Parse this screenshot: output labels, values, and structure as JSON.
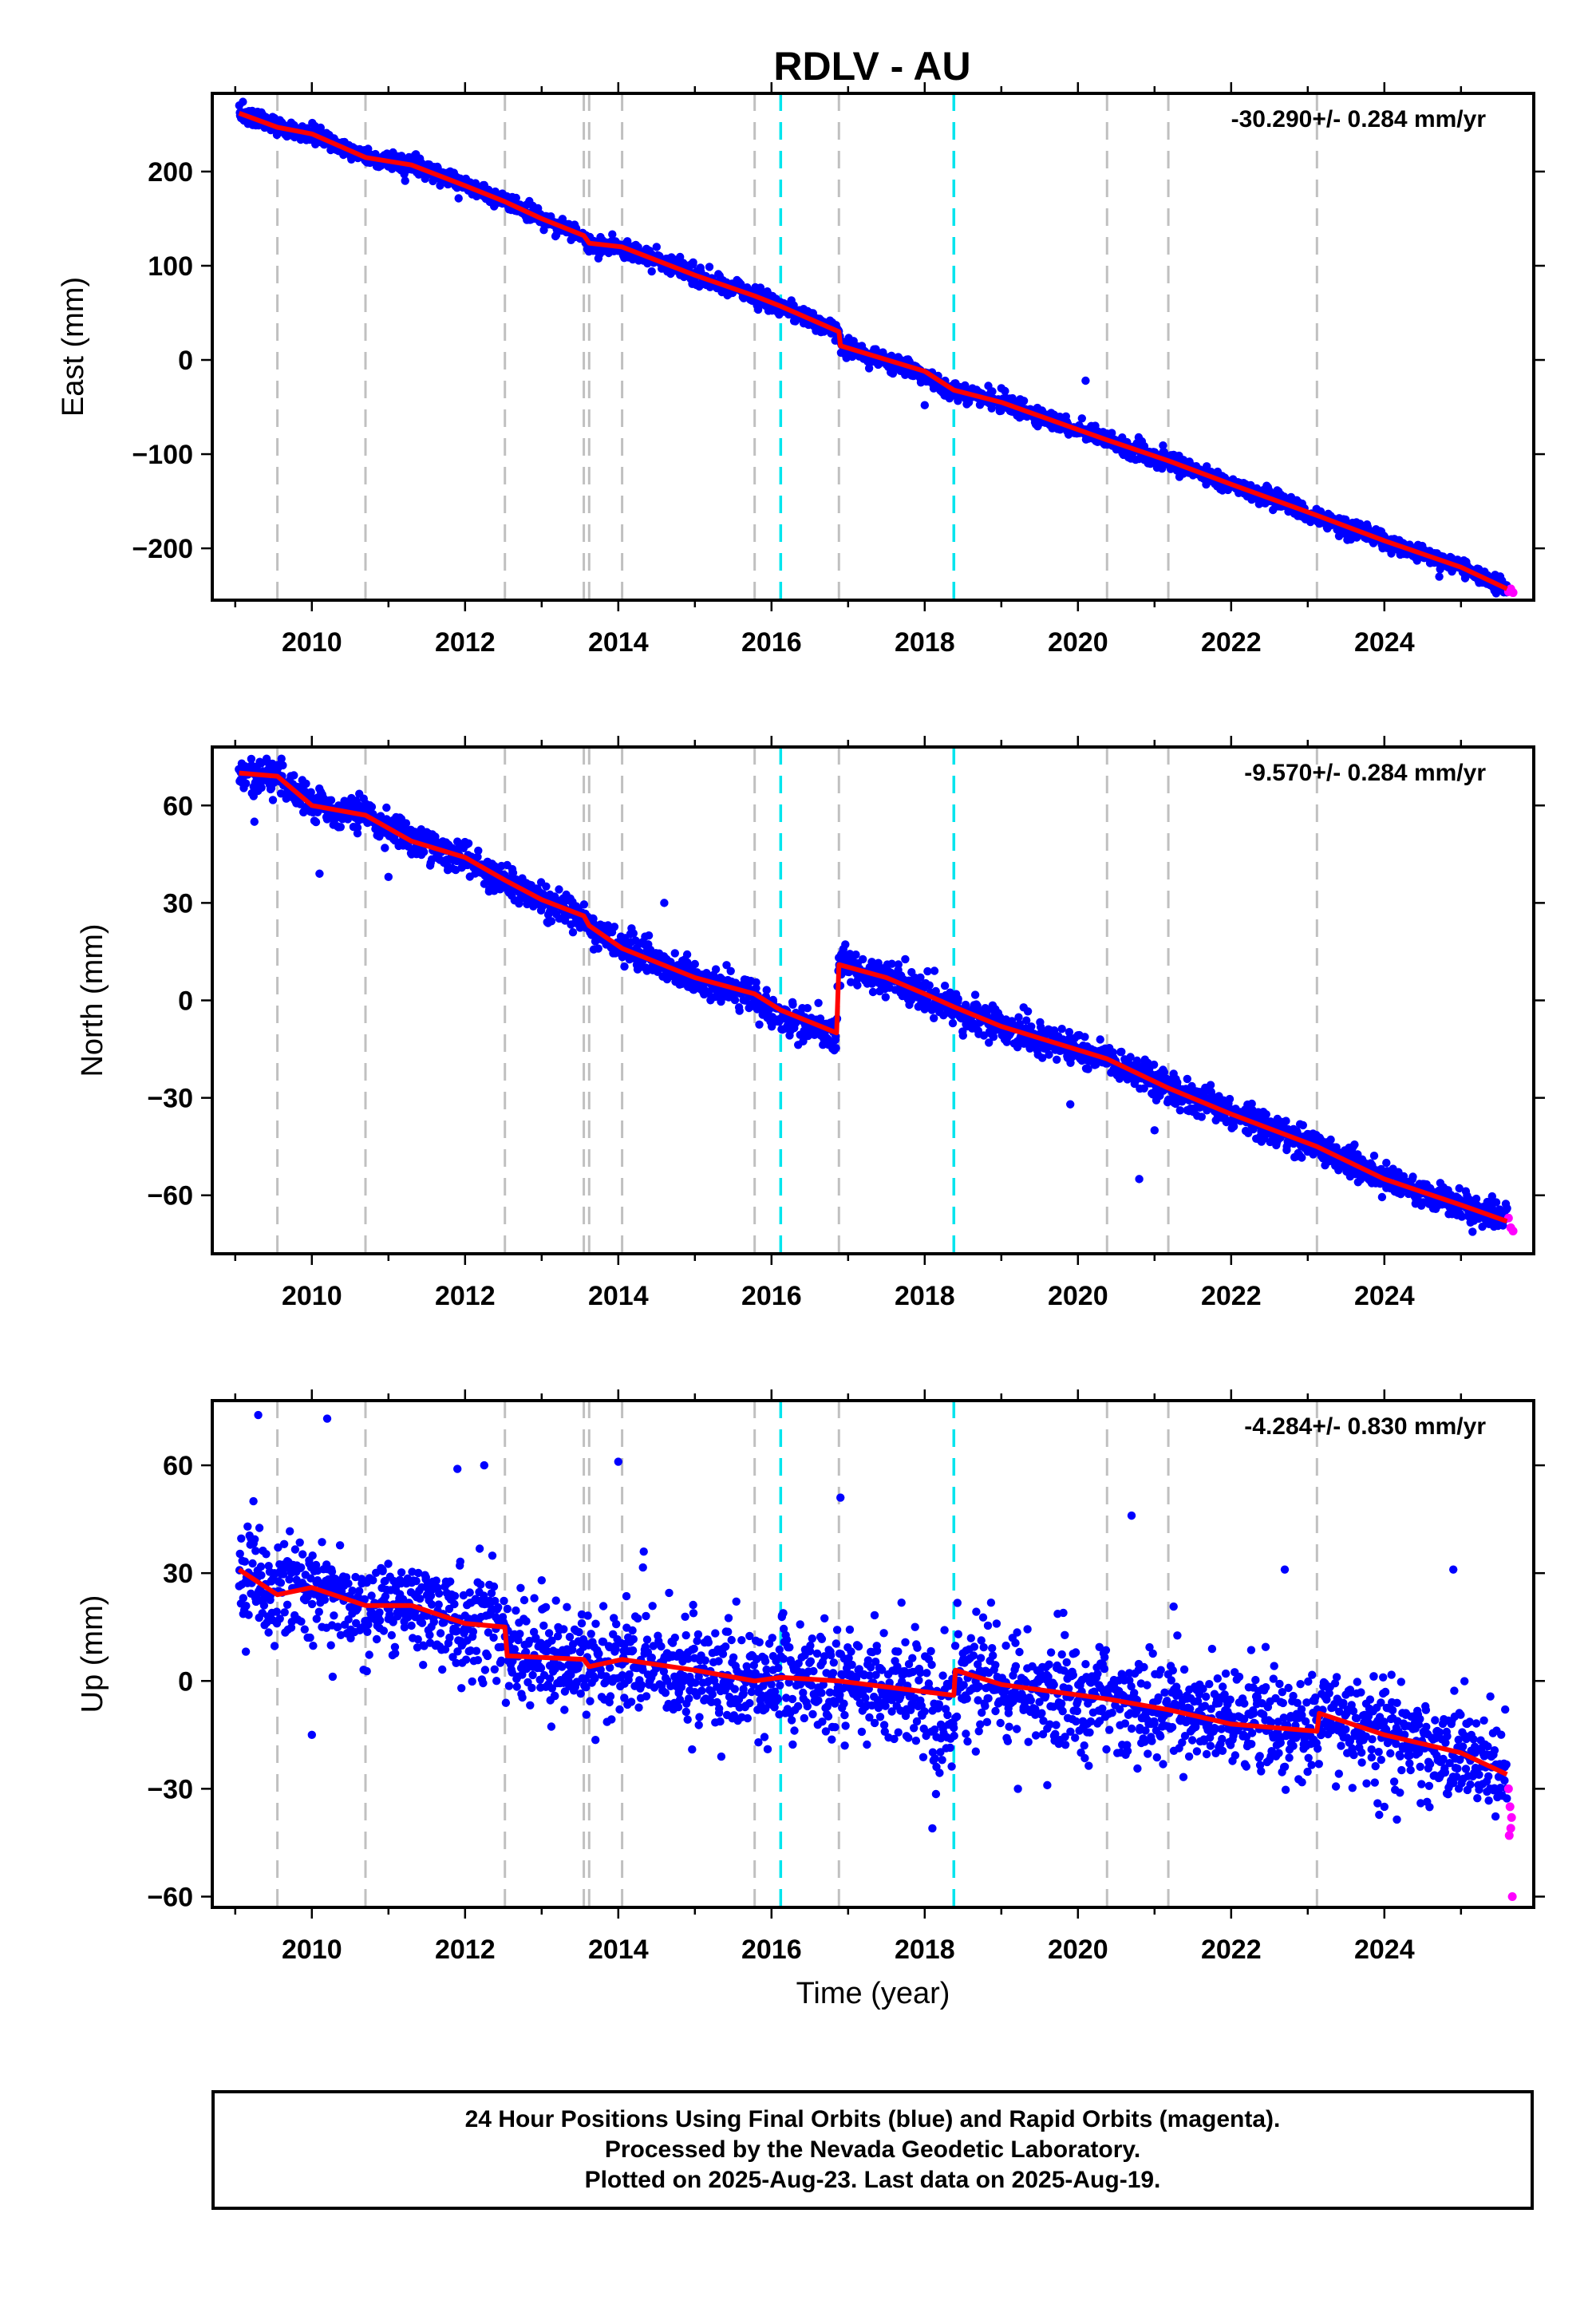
{
  "chart_data": {
    "type": "scatter",
    "title": "RDLV - AU",
    "xlabel": "Time (year)",
    "xlim": [
      2008.7,
      2025.95
    ],
    "x_ticks": [
      2010,
      2012,
      2014,
      2016,
      2018,
      2020,
      2022,
      2024
    ],
    "x_tick_labels": [
      "2010",
      "2012",
      "2014",
      "2016",
      "2018",
      "2020",
      "2022",
      "2024"
    ],
    "equipment_change_lines": [
      2009.55,
      2010.7,
      2012.52,
      2013.55,
      2013.62,
      2014.05,
      2015.78,
      2016.88,
      2020.38,
      2021.18,
      2023.12
    ],
    "earthquake_lines": [
      2016.12,
      2018.38
    ],
    "colors": {
      "final_orbits": "#0000ff",
      "rapid_orbits": "#ff00ff",
      "model": "#ff0000",
      "equipment_line": "#c0c0c0",
      "earthquake_line": "#00e5ee"
    },
    "panels": [
      {
        "name": "east",
        "ylabel": "East (mm)",
        "ylim": [
          -255,
          283
        ],
        "y_ticks": [
          -200,
          -100,
          0,
          100,
          200
        ],
        "y_tick_labels": [
          "−200",
          "−100",
          "0",
          "100",
          "200"
        ],
        "rate_text": "-30.290+/- 0.284 mm/yr",
        "model_knots": [
          [
            2009.05,
            262
          ],
          [
            2009.55,
            247
          ],
          [
            2010.0,
            240
          ],
          [
            2010.7,
            215
          ],
          [
            2011.3,
            207
          ],
          [
            2012.0,
            185
          ],
          [
            2012.52,
            168
          ],
          [
            2013.0,
            150
          ],
          [
            2013.55,
            132
          ],
          [
            2013.62,
            124
          ],
          [
            2014.05,
            120
          ],
          [
            2015.0,
            90
          ],
          [
            2015.78,
            68
          ],
          [
            2016.12,
            57
          ],
          [
            2016.88,
            30
          ],
          [
            2016.9,
            15
          ],
          [
            2018.0,
            -12
          ],
          [
            2018.38,
            -32
          ],
          [
            2019.0,
            -45
          ],
          [
            2020.38,
            -85
          ],
          [
            2021.18,
            -107
          ],
          [
            2022.0,
            -132
          ],
          [
            2023.12,
            -165
          ],
          [
            2024.0,
            -192
          ],
          [
            2025.0,
            -220
          ],
          [
            2025.6,
            -243
          ]
        ],
        "noise": 4.5,
        "outliers": [
          [
            2018.0,
            -48
          ],
          [
            2020.1,
            -22
          ],
          [
            2019.0,
            -30
          ],
          [
            2014.5,
            120
          ],
          [
            2009.1,
            274
          ]
        ],
        "rapid_points": [
          [
            2025.62,
            -246
          ],
          [
            2025.65,
            -243
          ],
          [
            2025.68,
            -247
          ]
        ]
      },
      {
        "name": "north",
        "ylabel": "North (mm)",
        "ylim": [
          -78,
          78
        ],
        "y_ticks": [
          -60,
          -30,
          0,
          30,
          60
        ],
        "y_tick_labels": [
          "−60",
          "−30",
          "0",
          "30",
          "60"
        ],
        "rate_text": "-9.570+/- 0.284 mm/yr",
        "model_knots": [
          [
            2009.05,
            70
          ],
          [
            2009.55,
            69
          ],
          [
            2010.0,
            60
          ],
          [
            2010.7,
            57
          ],
          [
            2011.3,
            49
          ],
          [
            2012.0,
            44
          ],
          [
            2012.52,
            37
          ],
          [
            2013.0,
            31
          ],
          [
            2013.55,
            26
          ],
          [
            2013.62,
            23
          ],
          [
            2014.05,
            16
          ],
          [
            2015.0,
            7
          ],
          [
            2015.78,
            2
          ],
          [
            2016.12,
            -3
          ],
          [
            2016.85,
            -10
          ],
          [
            2016.88,
            11
          ],
          [
            2017.5,
            7
          ],
          [
            2018.0,
            2
          ],
          [
            2018.38,
            -2
          ],
          [
            2019.0,
            -8
          ],
          [
            2020.38,
            -18
          ],
          [
            2021.18,
            -27
          ],
          [
            2022.0,
            -35
          ],
          [
            2023.12,
            -45
          ],
          [
            2024.0,
            -55
          ],
          [
            2025.0,
            -63
          ],
          [
            2025.6,
            -68
          ]
        ],
        "noise": 2.5,
        "outliers": [
          [
            2010.1,
            39
          ],
          [
            2011.0,
            38
          ],
          [
            2014.6,
            30
          ],
          [
            2020.8,
            -55
          ],
          [
            2021.0,
            -40
          ],
          [
            2019.9,
            -32
          ],
          [
            2009.25,
            55
          ]
        ],
        "rapid_points": [
          [
            2025.62,
            -67
          ],
          [
            2025.65,
            -70
          ],
          [
            2025.68,
            -71
          ]
        ]
      },
      {
        "name": "up",
        "ylabel": "Up (mm)",
        "ylim": [
          -63,
          78
        ],
        "y_ticks": [
          -60,
          -30,
          0,
          30,
          60
        ],
        "y_tick_labels": [
          "−60",
          "−30",
          "0",
          "30",
          "60"
        ],
        "rate_text": "-4.284+/- 0.830 mm/yr",
        "model_knots": [
          [
            2009.05,
            31
          ],
          [
            2009.55,
            24
          ],
          [
            2010.0,
            26
          ],
          [
            2010.7,
            21
          ],
          [
            2011.3,
            21
          ],
          [
            2012.0,
            16
          ],
          [
            2012.52,
            15
          ],
          [
            2012.55,
            7
          ],
          [
            2013.55,
            6
          ],
          [
            2013.62,
            4
          ],
          [
            2014.05,
            6
          ],
          [
            2015.0,
            3
          ],
          [
            2015.78,
            0
          ],
          [
            2016.12,
            1
          ],
          [
            2016.88,
            0
          ],
          [
            2018.0,
            -3
          ],
          [
            2018.38,
            -4
          ],
          [
            2018.4,
            3
          ],
          [
            2019.0,
            -1
          ],
          [
            2020.38,
            -5
          ],
          [
            2021.18,
            -8
          ],
          [
            2022.0,
            -12
          ],
          [
            2023.12,
            -14
          ],
          [
            2023.15,
            -9
          ],
          [
            2024.0,
            -15
          ],
          [
            2025.0,
            -20
          ],
          [
            2025.6,
            -26
          ]
        ],
        "noise": 7,
        "outliers": [
          [
            2009.3,
            74
          ],
          [
            2010.2,
            73
          ],
          [
            2011.9,
            59
          ],
          [
            2012.25,
            60
          ],
          [
            2014.0,
            61
          ],
          [
            2016.9,
            51
          ],
          [
            2010.0,
            -15
          ],
          [
            2015.95,
            -19
          ],
          [
            2018.1,
            -41
          ],
          [
            2020.7,
            46
          ],
          [
            2022.7,
            31
          ],
          [
            2024.9,
            31
          ],
          [
            2013.0,
            28
          ],
          [
            2019.6,
            -29
          ],
          [
            2024.0,
            -35
          ]
        ],
        "rapid_points": [
          [
            2025.62,
            -30
          ],
          [
            2025.64,
            -35
          ],
          [
            2025.66,
            -38
          ],
          [
            2025.63,
            -43
          ],
          [
            2025.65,
            -41
          ],
          [
            2025.67,
            -60
          ]
        ]
      }
    ]
  },
  "caption": {
    "line1": "24 Hour Positions Using Final Orbits (blue) and Rapid Orbits (magenta).",
    "line2": "Processed by the Nevada Geodetic Laboratory.",
    "line3": "Plotted on 2025-Aug-23. Last data on 2025-Aug-19."
  }
}
